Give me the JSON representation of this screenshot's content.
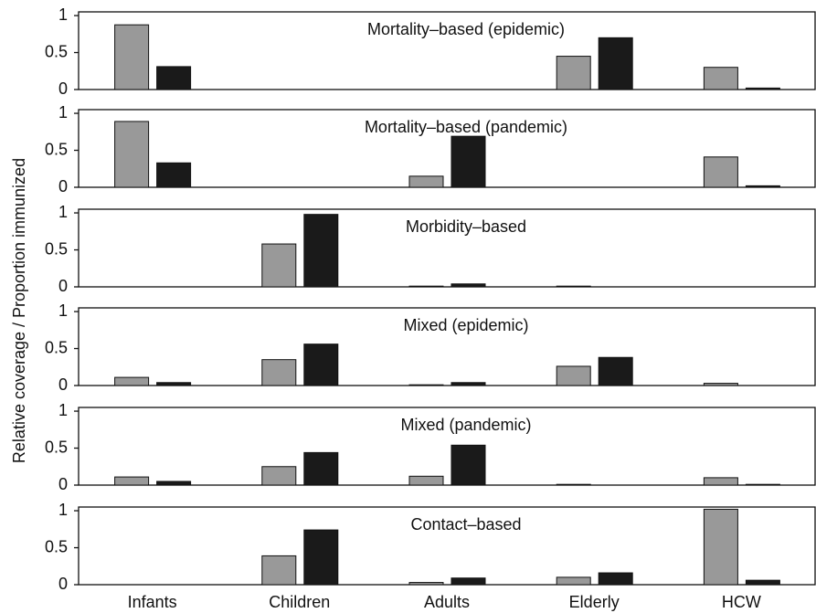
{
  "ylabel": "Relative coverage / Proportion immunized",
  "chart_data": [
    {
      "type": "bar",
      "title": "Mortality–based (epidemic)",
      "categories": [
        null,
        null,
        null,
        null,
        null
      ],
      "series": [
        {
          "color": "#999999",
          "values": [
            0.875,
            0,
            0,
            0.45,
            0.3
          ]
        },
        {
          "color": "#1a1a1a",
          "values": [
            0.31,
            0,
            0,
            0.7,
            0.02
          ]
        }
      ],
      "ylim": [
        0,
        1.05
      ],
      "yticks": [
        0,
        0.5,
        1
      ]
    },
    {
      "type": "bar",
      "title": "Mortality–based (pandemic)",
      "categories": [
        null,
        null,
        null,
        null,
        null
      ],
      "series": [
        {
          "color": "#999999",
          "values": [
            0.89,
            0,
            0.15,
            0,
            0.41
          ]
        },
        {
          "color": "#1a1a1a",
          "values": [
            0.33,
            0,
            0.69,
            0,
            0.02
          ]
        }
      ],
      "ylim": [
        0,
        1.05
      ],
      "yticks": [
        0,
        0.5,
        1
      ]
    },
    {
      "type": "bar",
      "title": "Morbidity–based",
      "categories": [
        null,
        null,
        null,
        null,
        null
      ],
      "series": [
        {
          "color": "#999999",
          "values": [
            0,
            0.58,
            0.01,
            0.01,
            0
          ]
        },
        {
          "color": "#1a1a1a",
          "values": [
            0,
            0.98,
            0.04,
            0,
            0
          ]
        }
      ],
      "ylim": [
        0,
        1.05
      ],
      "yticks": [
        0,
        0.5,
        1
      ]
    },
    {
      "type": "bar",
      "title": "Mixed (epidemic)",
      "categories": [
        null,
        null,
        null,
        null,
        null
      ],
      "series": [
        {
          "color": "#999999",
          "values": [
            0.11,
            0.35,
            0.01,
            0.26,
            0.03
          ]
        },
        {
          "color": "#1a1a1a",
          "values": [
            0.04,
            0.56,
            0.04,
            0.38,
            0
          ]
        }
      ],
      "ylim": [
        0,
        1.05
      ],
      "yticks": [
        0,
        0.5,
        1
      ]
    },
    {
      "type": "bar",
      "title": "Mixed (pandemic)",
      "categories": [
        null,
        null,
        null,
        null,
        null
      ],
      "series": [
        {
          "color": "#999999",
          "values": [
            0.11,
            0.25,
            0.12,
            0.01,
            0.1
          ]
        },
        {
          "color": "#1a1a1a",
          "values": [
            0.05,
            0.44,
            0.54,
            0,
            0.01
          ]
        }
      ],
      "ylim": [
        0,
        1.05
      ],
      "yticks": [
        0,
        0.5,
        1
      ]
    },
    {
      "type": "bar",
      "title": "Contact–based",
      "categories": [
        "Infants",
        "Children",
        "Adults",
        "Elderly",
        "HCW"
      ],
      "series": [
        {
          "color": "#999999",
          "values": [
            0,
            0.39,
            0.03,
            0.1,
            1.02
          ]
        },
        {
          "color": "#1a1a1a",
          "values": [
            0,
            0.74,
            0.09,
            0.16,
            0.06
          ]
        }
      ],
      "ylim": [
        0,
        1.05
      ],
      "yticks": [
        0,
        0.5,
        1
      ]
    }
  ]
}
